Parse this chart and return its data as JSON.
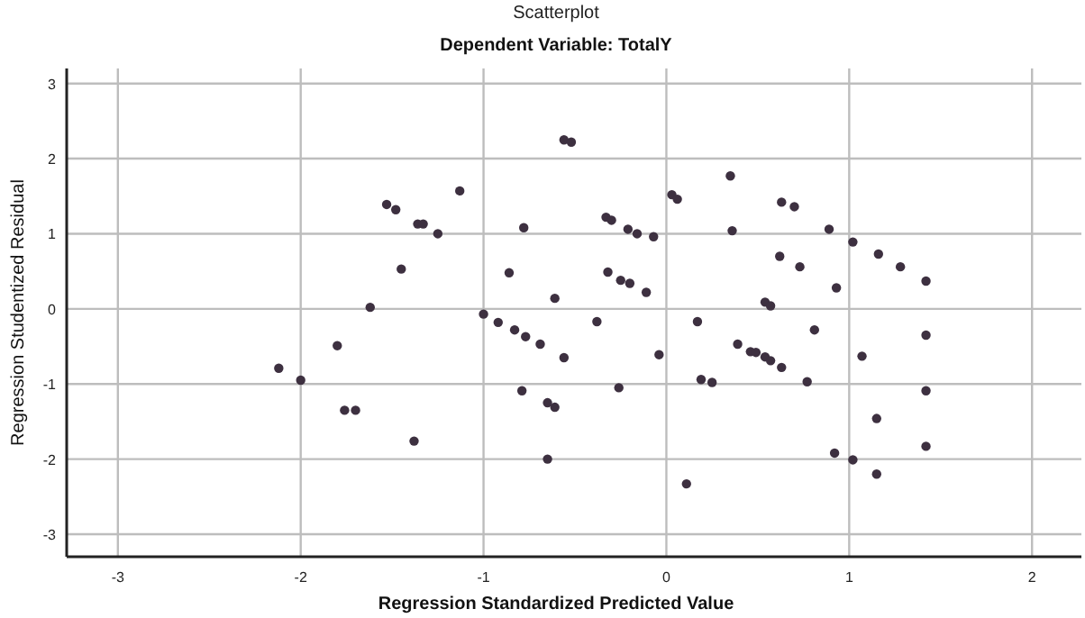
{
  "chart_data": {
    "type": "scatter",
    "title": "Scatterplot",
    "subtitle": "Dependent Variable: TotalY",
    "xlabel": "Regression Standardized Predicted Value",
    "ylabel": "Regression Studentized Residual",
    "xlim": [
      -3.28,
      2.27
    ],
    "ylim": [
      -3.3,
      3.2
    ],
    "xticks": [
      -3,
      -2,
      -1,
      0,
      1,
      2
    ],
    "yticks": [
      -3,
      -2,
      -1,
      0,
      1,
      2,
      3
    ],
    "grid": true,
    "marker": "circle",
    "series": [
      {
        "color": "#3d3040",
        "x": [
          -2.12,
          -2.0,
          -1.8,
          -1.76,
          -1.7,
          -1.62,
          -1.53,
          -1.48,
          -1.45,
          -1.38,
          -1.36,
          -1.33,
          -1.25,
          -1.13,
          -1.0,
          -0.92,
          -0.86,
          -0.83,
          -0.79,
          -0.78,
          -0.77,
          -0.69,
          -0.65,
          -0.61,
          -0.65,
          -0.61,
          -0.56,
          -0.56,
          -0.52,
          -0.38,
          -0.33,
          -0.3,
          -0.32,
          -0.26,
          -0.25,
          -0.2,
          -0.21,
          -0.16,
          -0.11,
          -0.07,
          -0.04,
          0.03,
          0.06,
          0.11,
          0.17,
          0.19,
          0.25,
          0.35,
          0.36,
          0.39,
          0.46,
          0.49,
          0.54,
          0.57,
          0.54,
          0.57,
          0.62,
          0.63,
          0.7,
          0.63,
          0.73,
          0.77,
          0.81,
          0.89,
          0.92,
          0.93,
          1.02,
          1.02,
          1.07,
          1.15,
          1.15,
          1.16,
          1.28,
          1.42,
          1.42,
          1.42,
          1.42
        ],
        "values": [
          -0.79,
          -0.95,
          -0.49,
          -1.35,
          -1.35,
          0.02,
          1.39,
          1.32,
          0.53,
          -1.76,
          1.13,
          1.13,
          1.0,
          1.57,
          -0.07,
          -0.18,
          0.48,
          -0.28,
          -1.09,
          1.08,
          -0.37,
          -0.47,
          -1.25,
          -1.31,
          -2.0,
          0.14,
          -0.65,
          2.25,
          2.22,
          -0.17,
          1.22,
          1.18,
          0.49,
          -1.05,
          0.38,
          0.34,
          1.06,
          1.0,
          0.22,
          0.96,
          -0.61,
          1.52,
          1.46,
          -2.33,
          -0.17,
          -0.94,
          -0.98,
          1.77,
          1.04,
          -0.47,
          -0.57,
          -0.58,
          0.09,
          0.04,
          -0.64,
          -0.69,
          0.7,
          1.42,
          1.36,
          -0.78,
          0.56,
          -0.97,
          -0.28,
          1.06,
          -1.92,
          0.28,
          0.89,
          -2.01,
          -0.63,
          -1.46,
          -2.2,
          0.73,
          0.56,
          0.37,
          -0.35,
          -1.09,
          -1.83
        ]
      }
    ]
  }
}
